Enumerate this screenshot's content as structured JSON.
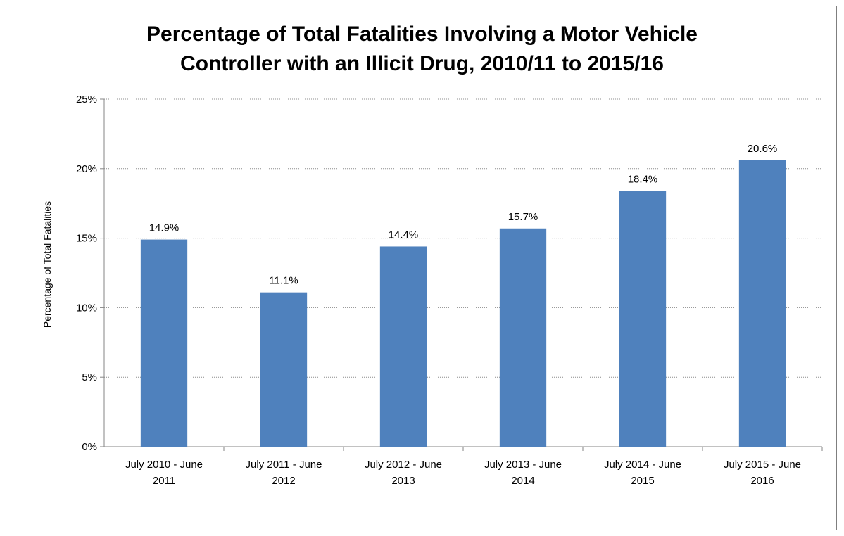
{
  "chart_data": {
    "type": "bar",
    "title_lines": [
      "Percentage of Total Fatalities Involving a Motor Vehicle",
      "Controller with an Illicit Drug, 2010/11 to 2015/16"
    ],
    "xlabel": "",
    "ylabel": "Percentage of Total  Fatalities",
    "ylim": [
      0,
      25
    ],
    "y_ticks": [
      0,
      5,
      10,
      15,
      20,
      25
    ],
    "y_tick_labels": [
      "0%",
      "5%",
      "10%",
      "15%",
      "20%",
      "25%"
    ],
    "categories": [
      [
        "July 2010 - June",
        "2011"
      ],
      [
        "July 2011 - June",
        "2012"
      ],
      [
        "July 2012 - June",
        "2013"
      ],
      [
        "July 2013 - June",
        "2014"
      ],
      [
        "July 2014 - June",
        "2015"
      ],
      [
        "July 2015 - June",
        "2016"
      ]
    ],
    "values": [
      14.9,
      11.1,
      14.4,
      15.7,
      18.4,
      20.6
    ],
    "data_labels": [
      "14.9%",
      "11.1%",
      "14.4%",
      "15.7%",
      "18.4%",
      "20.6%"
    ],
    "bar_color": "#4f81bd",
    "grid": true,
    "grid_style": "dotted",
    "legend": "none"
  }
}
